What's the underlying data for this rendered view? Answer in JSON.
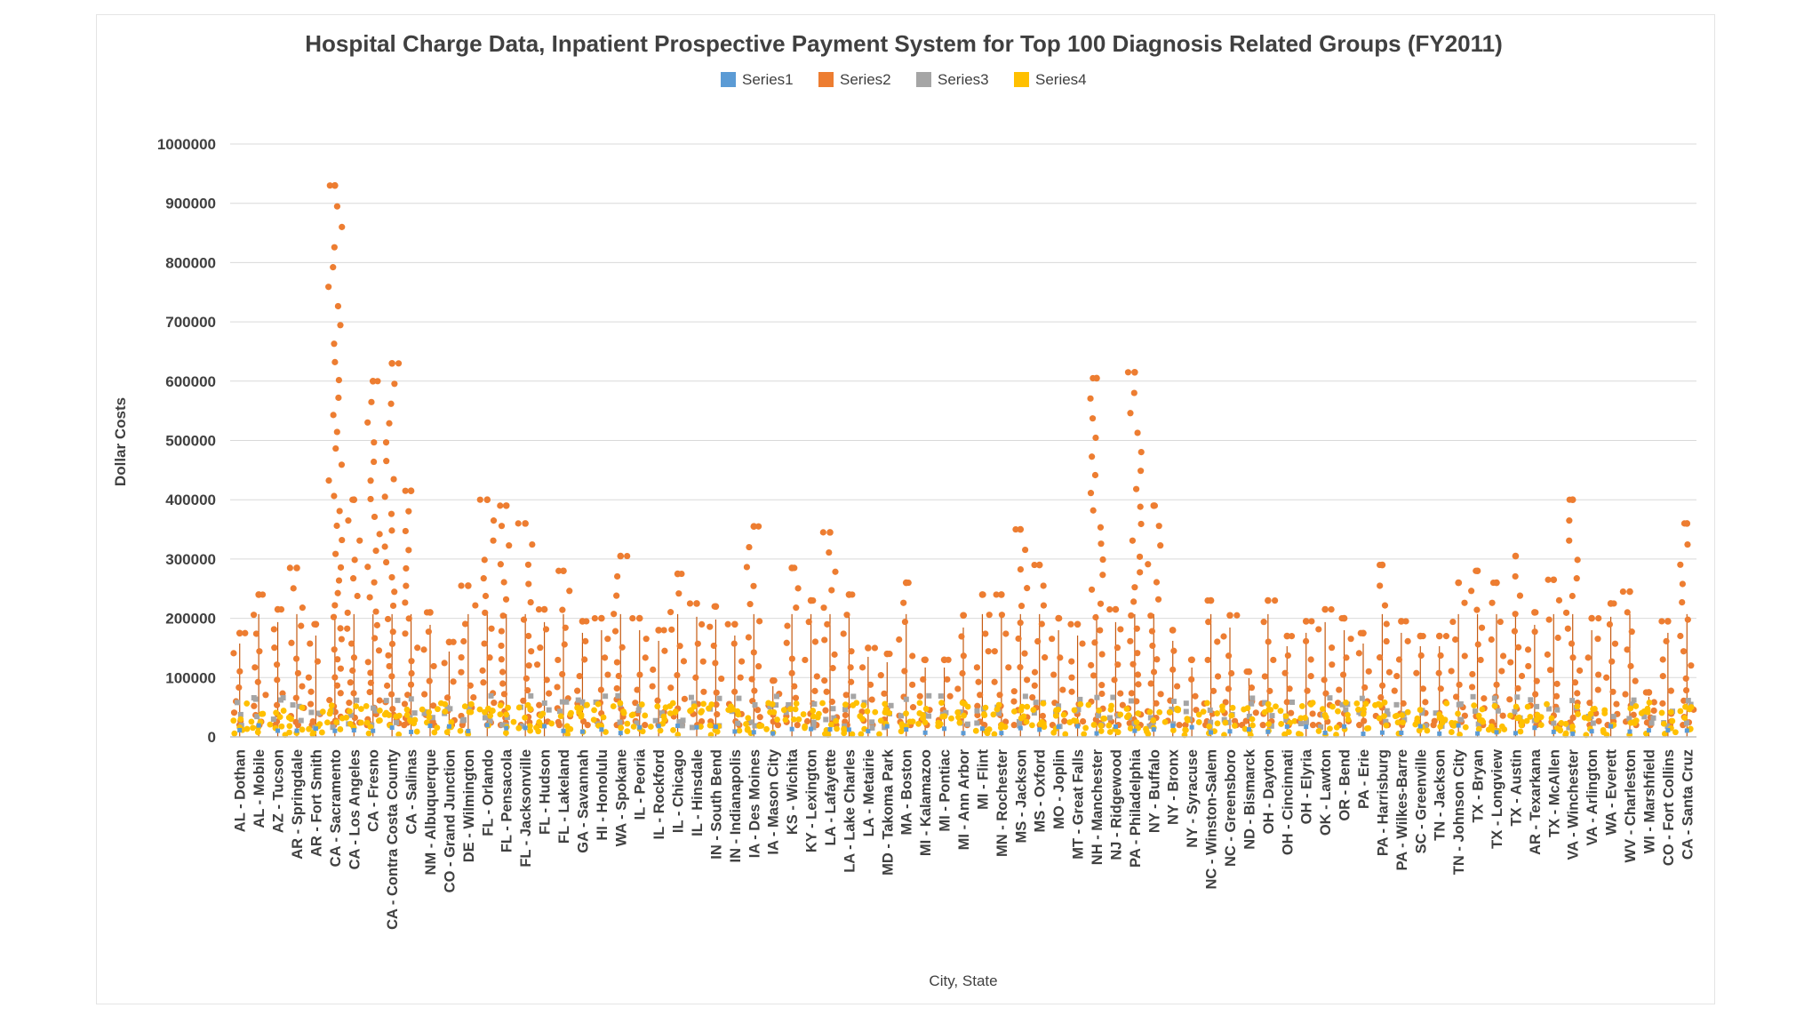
{
  "chart_data": {
    "type": "scatter",
    "title": "Hospital Charge Data, Inpatient Prospective Payment System for Top 100 Diagnosis Related Groups (FY2011)",
    "xlabel": "City, State",
    "ylabel": "Dollar Costs",
    "ylim": [
      0,
      1000000
    ],
    "yticks": [
      "0",
      "100000",
      "200000",
      "300000",
      "400000",
      "500000",
      "600000",
      "700000",
      "800000",
      "900000",
      "1000000"
    ],
    "grid": true,
    "legend_position": "top-center",
    "series": [
      {
        "name": "Series1",
        "color": "#5b9bd5"
      },
      {
        "name": "Series2",
        "color": "#ed7d31"
      },
      {
        "name": "Series3",
        "color": "#a5a5a5"
      },
      {
        "name": "Series4",
        "color": "#ffc000"
      }
    ],
    "categories": [
      "AL - Dothan",
      "AL - Mobile",
      "AZ - Tucson",
      "AR - Springdale",
      "AR - Fort Smith",
      "CA - Sacramento",
      "CA - Los Angeles",
      "CA - Fresno",
      "CA - Contra Costa County",
      "CA - Salinas",
      "NM - Albuquerque",
      "CO - Grand Junction",
      "DE - Wilmington",
      "FL - Orlando",
      "FL - Pensacola",
      "FL - Jacksonville",
      "FL - Hudson",
      "FL - Lakeland",
      "GA - Savannah",
      "HI - Honolulu",
      "WA - Spokane",
      "IL - Peoria",
      "IL - Rockford",
      "IL - Chicago",
      "IL - Hinsdale",
      "IN - South Bend",
      "IN - Indianapolis",
      "IA - Des Moines",
      "IA - Mason City",
      "KS - Wichita",
      "KY - Lexington",
      "LA - Lafayette",
      "LA - Lake Charles",
      "LA - Metairie",
      "MD - Takoma Park",
      "MA - Boston",
      "MI - Kalamazoo",
      "MI - Pontiac",
      "MI - Ann Arbor",
      "MI - Flint",
      "MN - Rochester",
      "MS - Jackson",
      "MS - Oxford",
      "MO - Joplin",
      "MT - Great Falls",
      "NH - Manchester",
      "NJ - Ridgewood",
      "PA - Philadelphia",
      "NY - Buffalo",
      "NY - Bronx",
      "NY - Syracuse",
      "NC - Winston-Salem",
      "NC - Greensboro",
      "ND - Bismarck",
      "OH - Dayton",
      "OH - Cincinnati",
      "OH - Elyria",
      "OK - Lawton",
      "OR - Bend",
      "PA - Erie",
      "PA - Harrisburg",
      "PA - Wilkes-Barre",
      "SC - Greenville",
      "TN - Jackson",
      "TN - Johnson City",
      "TX - Bryan",
      "TX - Longview",
      "TX - Austin",
      "AR - Texarkana",
      "TX - McAllen",
      "VA - Winchester",
      "VA - Arlington",
      "WA - Everett",
      "WV - Charleston",
      "WI - Marshfield",
      "CO - Fort Collins",
      "CA - Santa Cruz"
    ],
    "series2_max_by_category": [
      175000,
      240000,
      215000,
      285000,
      190000,
      930000,
      400000,
      600000,
      630000,
      415000,
      210000,
      160000,
      255000,
      400000,
      390000,
      360000,
      215000,
      280000,
      195000,
      200000,
      305000,
      200000,
      180000,
      275000,
      225000,
      220000,
      190000,
      355000,
      95000,
      285000,
      230000,
      345000,
      240000,
      150000,
      140000,
      260000,
      130000,
      130000,
      205000,
      240000,
      240000,
      350000,
      290000,
      200000,
      190000,
      605000,
      215000,
      615000,
      390000,
      180000,
      130000,
      230000,
      205000,
      110000,
      230000,
      170000,
      195000,
      215000,
      200000,
      175000,
      290000,
      195000,
      170000,
      170000,
      260000,
      280000,
      260000,
      305000,
      210000,
      265000,
      400000,
      200000,
      225000,
      245000,
      75000,
      195000,
      360000
    ]
  }
}
